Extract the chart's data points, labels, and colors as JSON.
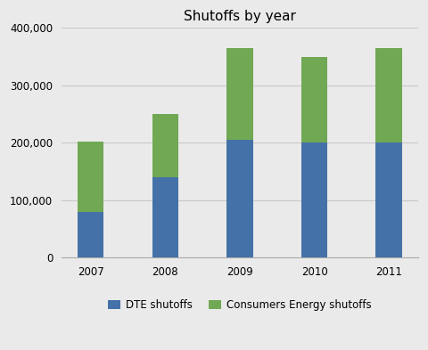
{
  "title": "Shutoffs by year",
  "years": [
    "2007",
    "2008",
    "2009",
    "2010",
    "2011"
  ],
  "dte_values": [
    80000,
    140000,
    205000,
    200000,
    200000
  ],
  "consumers_values": [
    122000,
    110000,
    160000,
    150000,
    165000
  ],
  "dte_color": "#4472a8",
  "consumers_color": "#70a853",
  "ylim": [
    0,
    400000
  ],
  "yticks": [
    0,
    100000,
    200000,
    300000,
    400000
  ],
  "legend_labels": [
    "DTE shutoffs",
    "Consumers Energy shutoffs"
  ],
  "bar_width": 0.35,
  "background_color": "#eaeaea",
  "plot_bg_color": "#eaeaea",
  "grid_color": "#c8c8c8",
  "title_fontsize": 11,
  "tick_fontsize": 8.5
}
